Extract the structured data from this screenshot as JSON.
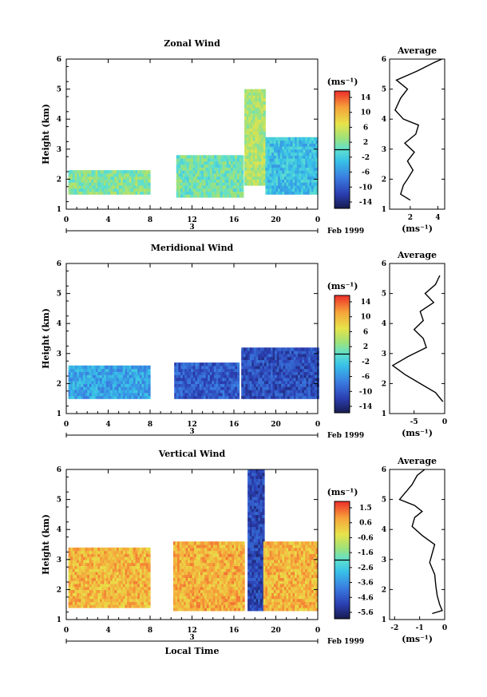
{
  "chart_data": [
    {
      "type": "heatmap",
      "title": "Zonal Wind",
      "ylabel": "Height (km)",
      "xlabel": "",
      "x_ticks": [
        "0",
        "4",
        "8",
        "12",
        "16",
        "20",
        "0"
      ],
      "y_ticks": [
        "1",
        "2",
        "3",
        "4",
        "5",
        "6"
      ],
      "ylim": [
        1,
        6
      ],
      "date_label": "Feb 1999",
      "day_label": "3",
      "colorbar": {
        "unit": "(ms⁻¹)",
        "ticks": [
          "14",
          "10",
          "6",
          "2",
          "-2",
          "-6",
          "-10",
          "-14"
        ],
        "min": -16,
        "max": 16
      },
      "time_blocks": [
        {
          "start": 0.2,
          "end": 8.0,
          "bottom": 1.5,
          "top": 2.3,
          "mean": 2
        },
        {
          "start": 10.5,
          "end": 16.8,
          "bottom": 1.4,
          "top": 2.8,
          "mean": 1
        },
        {
          "start": 17.0,
          "end": 19.0,
          "bottom": 1.8,
          "top": 5.0,
          "mean": 4
        },
        {
          "start": 19.0,
          "end": 24.0,
          "bottom": 1.5,
          "top": 3.4,
          "mean": -3
        }
      ],
      "profile": {
        "title": "Average",
        "x_ticks": [
          "2",
          "4"
        ],
        "xlim": [
          0.5,
          4.5
        ],
        "unit": "(ms⁻¹)",
        "height": [
          1.3,
          1.5,
          1.8,
          2.0,
          2.3,
          2.6,
          2.9,
          3.2,
          3.5,
          3.8,
          4.0,
          4.3,
          4.7,
          5.0,
          5.3,
          5.6,
          5.9,
          6.0
        ],
        "value": [
          2.0,
          1.3,
          1.5,
          1.8,
          2.2,
          1.8,
          2.3,
          1.6,
          2.4,
          2.6,
          1.5,
          0.9,
          1.3,
          1.8,
          1.0,
          2.5,
          3.8,
          4.3
        ]
      }
    },
    {
      "type": "heatmap",
      "title": "Meridional Wind",
      "ylabel": "Height (km)",
      "xlabel": "",
      "x_ticks": [
        "0",
        "4",
        "8",
        "12",
        "16",
        "20",
        "0"
      ],
      "y_ticks": [
        "1",
        "2",
        "3",
        "4",
        "5",
        "6"
      ],
      "ylim": [
        1,
        6
      ],
      "date_label": "Feb 1999",
      "day_label": "3",
      "colorbar": {
        "unit": "(ms⁻¹)",
        "ticks": [
          "14",
          "10",
          "6",
          "2",
          "-2",
          "-6",
          "-10",
          "-14"
        ],
        "min": -16,
        "max": 16
      },
      "time_blocks": [
        {
          "start": 0.2,
          "end": 8.0,
          "bottom": 1.5,
          "top": 2.6,
          "mean": -5
        },
        {
          "start": 10.3,
          "end": 16.5,
          "bottom": 1.5,
          "top": 2.7,
          "mean": -10
        },
        {
          "start": 16.7,
          "end": 24.0,
          "bottom": 1.5,
          "top": 3.2,
          "mean": -11
        }
      ],
      "profile": {
        "title": "Average",
        "x_ticks": [
          "-5",
          "0"
        ],
        "xlim": [
          -9,
          0
        ],
        "unit": "(ms⁻¹)",
        "height": [
          1.4,
          1.7,
          2.0,
          2.3,
          2.6,
          2.9,
          3.2,
          3.5,
          3.8,
          4.1,
          4.4,
          4.7,
          5.0,
          5.3,
          5.6
        ],
        "value": [
          -0.3,
          -1.5,
          -4.0,
          -6.5,
          -8.5,
          -6.0,
          -3.0,
          -3.5,
          -5.0,
          -3.5,
          -4.0,
          -1.8,
          -3.2,
          -1.5,
          -0.8
        ]
      }
    },
    {
      "type": "heatmap",
      "title": "Vertical Wind",
      "ylabel": "Height (km)",
      "xlabel": "Local Time",
      "x_ticks": [
        "0",
        "4",
        "8",
        "12",
        "16",
        "20",
        "0"
      ],
      "y_ticks": [
        "1",
        "2",
        "3",
        "4",
        "5",
        "6"
      ],
      "ylim": [
        1,
        6
      ],
      "date_label": "Feb 1999",
      "day_label": "3",
      "colorbar": {
        "unit": "(ms⁻¹)",
        "ticks": [
          "1.5",
          "0.6",
          "-0.6",
          "-1.6",
          "-2.6",
          "-3.6",
          "-4.6",
          "-5.6"
        ],
        "min": -6.1,
        "max": 2.0
      },
      "time_blocks": [
        {
          "start": 0.2,
          "end": 8.0,
          "bottom": 1.4,
          "top": 3.4,
          "mean": 0.5
        },
        {
          "start": 10.2,
          "end": 17.0,
          "bottom": 1.3,
          "top": 3.6,
          "mean": 0.6
        },
        {
          "start": 17.3,
          "end": 18.8,
          "bottom": 1.3,
          "top": 6.0,
          "mean": -5.0
        },
        {
          "start": 18.8,
          "end": 24.0,
          "bottom": 1.3,
          "top": 3.6,
          "mean": 0.5
        }
      ],
      "profile": {
        "title": "Average",
        "x_ticks": [
          "-2",
          "-1",
          "0"
        ],
        "xlim": [
          -2.2,
          0
        ],
        "unit": "(ms⁻¹)",
        "height": [
          1.2,
          1.3,
          1.5,
          1.8,
          2.1,
          2.5,
          2.9,
          3.2,
          3.5,
          3.8,
          4.1,
          4.4,
          4.6,
          4.8,
          5.0,
          5.2,
          5.5,
          5.8,
          6.0
        ],
        "value": [
          -0.5,
          -0.1,
          -0.2,
          -0.3,
          -0.35,
          -0.4,
          -0.6,
          -0.5,
          -0.4,
          -0.9,
          -1.3,
          -1.2,
          -0.9,
          -1.2,
          -1.8,
          -1.6,
          -1.3,
          -1.1,
          -0.8
        ]
      }
    }
  ]
}
